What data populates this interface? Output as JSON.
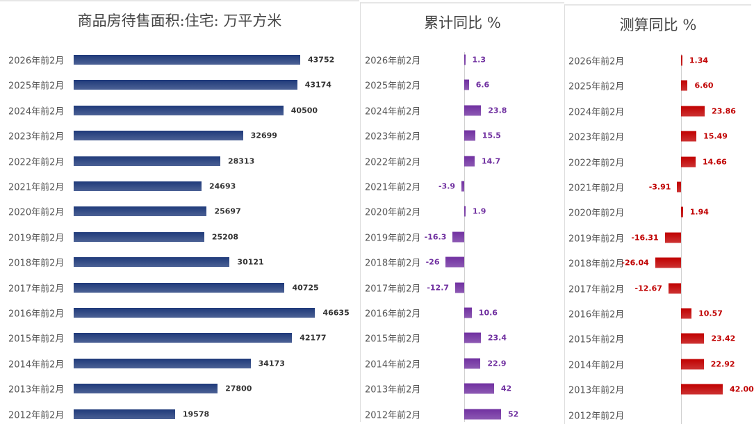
{
  "chart_data": [
    {
      "type": "bar",
      "orientation": "horizontal",
      "title": "商品房待售面积:住宅: 万平方米",
      "color": "#1f3a7a",
      "categories": [
        "2026年前2月",
        "2025年前2月",
        "2024年前2月",
        "2023年前2月",
        "2022年前2月",
        "2021年前2月",
        "2020年前2月",
        "2019年前2月",
        "2018年前2月",
        "2017年前2月",
        "2016年前2月",
        "2015年前2月",
        "2014年前2月",
        "2013年前2月",
        "2012年前2月"
      ],
      "values": [
        43752,
        43174,
        40500,
        32699,
        28313,
        24693,
        25697,
        25208,
        30121,
        40725,
        46635,
        42177,
        34173,
        27800,
        19578
      ],
      "labels": [
        "43752",
        "43174",
        "40500",
        "32699",
        "28313",
        "24693",
        "25697",
        "25208",
        "30121",
        "40725",
        "46635",
        "42177",
        "34173",
        "27800",
        "19578"
      ]
    },
    {
      "type": "bar",
      "orientation": "horizontal",
      "title": "累计同比 %",
      "color": "#7030a0",
      "categories": [
        "2026年前2月",
        "2025年前2月",
        "2024年前2月",
        "2023年前2月",
        "2022年前2月",
        "2021年前2月",
        "2020年前2月",
        "2019年前2月",
        "2018年前2月",
        "2017年前2月",
        "2016年前2月",
        "2015年前2月",
        "2014年前2月",
        "2013年前2月",
        "2012年前2月"
      ],
      "values": [
        1.3,
        6.6,
        23.8,
        15.5,
        14.7,
        -3.9,
        1.9,
        -16.3,
        -26,
        -12.7,
        10.6,
        23.4,
        22.9,
        42,
        52
      ],
      "labels": [
        "1.3",
        "6.6",
        "23.8",
        "15.5",
        "14.7",
        "-3.9",
        "1.9",
        "-16.3",
        "-26",
        "-12.7",
        "10.6",
        "23.4",
        "22.9",
        "42",
        "52"
      ]
    },
    {
      "type": "bar",
      "orientation": "horizontal",
      "title": "测算同比 %",
      "color": "#c00000",
      "categories": [
        "2026年前2月",
        "2025年前2月",
        "2024年前2月",
        "2023年前2月",
        "2022年前2月",
        "2021年前2月",
        "2020年前2月",
        "2019年前2月",
        "2018年前2月",
        "2017年前2月",
        "2016年前2月",
        "2015年前2月",
        "2014年前2月",
        "2013年前2月",
        "2012年前2月"
      ],
      "values": [
        1.34,
        6.6,
        23.86,
        15.49,
        14.66,
        -3.91,
        1.94,
        -16.31,
        -26.04,
        -12.67,
        10.57,
        23.42,
        22.92,
        42.0,
        null
      ],
      "labels": [
        "1.34",
        "6.60",
        "23.86",
        "15.49",
        "14.66",
        "-3.91",
        "1.94",
        "-16.31",
        "-26.04",
        "-12.67",
        "10.57",
        "23.42",
        "22.92",
        "42.00",
        ""
      ]
    }
  ]
}
